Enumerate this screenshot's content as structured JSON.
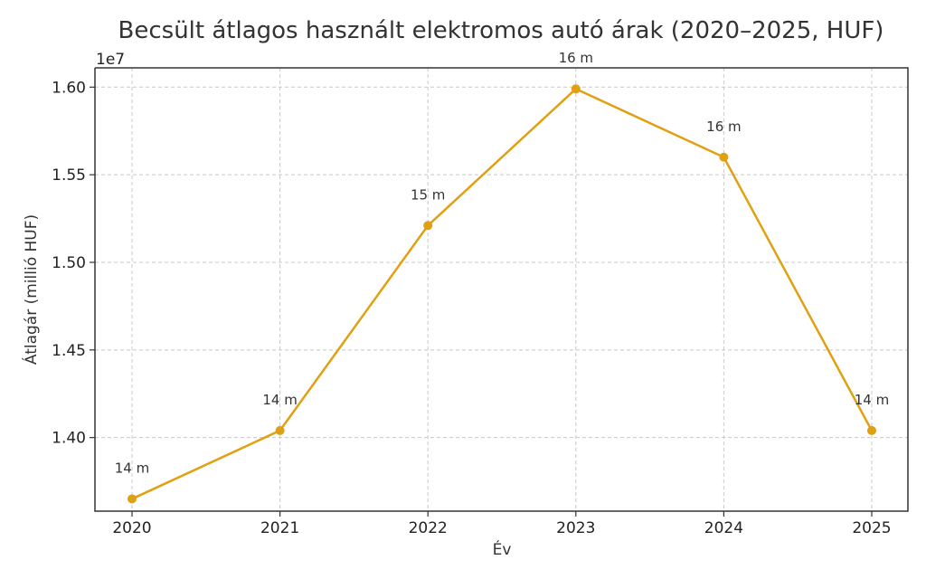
{
  "chart_data": {
    "type": "line",
    "title": "Becsült átlagos használt elektromos autó árak (2020–2025, HUF)",
    "xlabel": "Év",
    "ylabel": "Átlagár (millió HUF)",
    "offset_label": "1e7",
    "categories": [
      "2020",
      "2021",
      "2022",
      "2023",
      "2024",
      "2025"
    ],
    "series": [
      {
        "values": [
          13650000,
          14040000,
          15210000,
          15990000,
          15600000,
          14040000
        ],
        "labels": [
          "14 m",
          "14 m",
          "15 m",
          "16 m",
          "16 m",
          "14 m"
        ],
        "color": "#E0A010"
      }
    ],
    "yticks": [
      1.4,
      1.45,
      1.5,
      1.55,
      1.6
    ],
    "ytick_labels": [
      "1.40",
      "1.45",
      "1.50",
      "1.55",
      "1.60"
    ],
    "ylim": [
      13580000,
      16110000
    ],
    "grid": true
  }
}
